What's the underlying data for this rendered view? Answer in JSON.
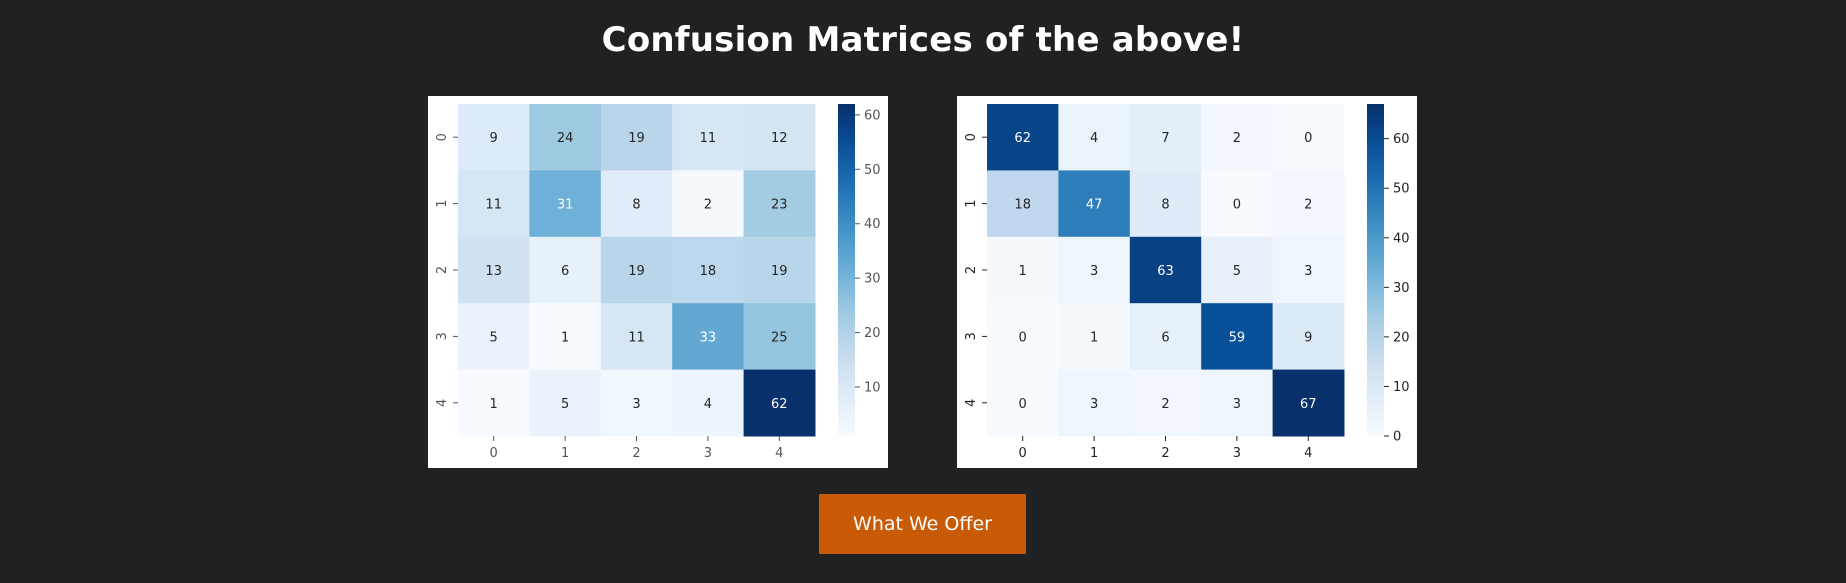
{
  "page": {
    "title": "Confusion Matrices of the above!"
  },
  "cta": {
    "label": "What We Offer"
  },
  "colors": {
    "background": "#202123",
    "button": "#c95a06",
    "text": "#ffffff"
  },
  "chart_data": [
    {
      "type": "heatmap",
      "colormap": "Blues",
      "x_tick_labels": [
        "0",
        "1",
        "2",
        "3",
        "4"
      ],
      "y_tick_labels": [
        "0",
        "1",
        "2",
        "3",
        "4"
      ],
      "values": [
        [
          9,
          24,
          19,
          11,
          12
        ],
        [
          11,
          31,
          8,
          2,
          23
        ],
        [
          13,
          6,
          19,
          18,
          19
        ],
        [
          5,
          1,
          11,
          33,
          25
        ],
        [
          1,
          5,
          3,
          4,
          62
        ]
      ],
      "color_range": [
        1,
        62
      ],
      "colorbar_ticks": [
        "10",
        "20",
        "30",
        "40",
        "50",
        "60"
      ]
    },
    {
      "type": "heatmap",
      "colormap": "Blues",
      "x_tick_labels": [
        "0",
        "1",
        "2",
        "3",
        "4"
      ],
      "y_tick_labels": [
        "0",
        "1",
        "2",
        "3",
        "4"
      ],
      "values": [
        [
          62,
          4,
          7,
          2,
          0
        ],
        [
          18,
          47,
          8,
          0,
          2
        ],
        [
          1,
          3,
          63,
          5,
          3
        ],
        [
          0,
          1,
          6,
          59,
          9
        ],
        [
          0,
          3,
          2,
          3,
          67
        ]
      ],
      "color_range": [
        0,
        67
      ],
      "colorbar_ticks": [
        "0",
        "10",
        "20",
        "30",
        "40",
        "50",
        "60"
      ]
    }
  ]
}
